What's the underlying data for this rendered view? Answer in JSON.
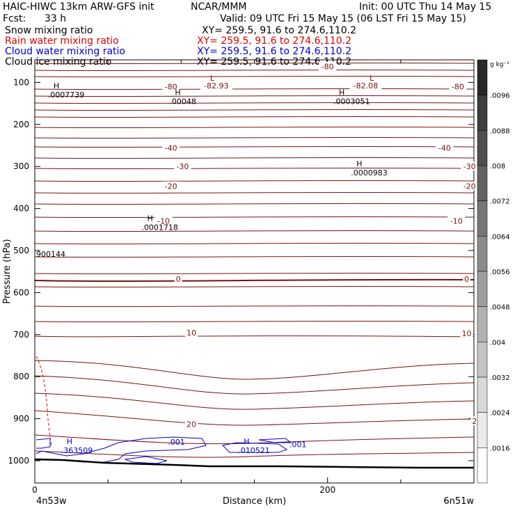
{
  "header": {
    "model": "HAIC-HIWC 13km ARW-GFS init",
    "org": "NCAR/MMM",
    "init": "Init: 00 UTC Thu 14 May 15",
    "fcst_label": "Fcst:",
    "fcst_value": "33 h",
    "valid": "Valid: 09 UTC Fri 15 May 15 (06 LST Fri 15 May 15)"
  },
  "fields": [
    {
      "name": "Snow mixing ratio",
      "xy": "XY= 259.5, 91.6 to 274.6,110.2",
      "color": "#000000"
    },
    {
      "name": "Rain water mixing ratio",
      "xy": "XY= 259.5, 91.6 to 274.6,110.2",
      "color": "#e00000"
    },
    {
      "name": "Cloud water mixing ratio",
      "xy": "XY= 259.5, 91.6 to 274.6,110.2",
      "color": "#0000cc"
    },
    {
      "name": "Cloud ice mixing ratio",
      "xy": "XY= 259.5, 91.6 to 274.6,110.2",
      "color": "#000000"
    }
  ],
  "colors": {
    "temperature_contour": "#7a1010",
    "cloud_water_contour": "#0000cc",
    "rain_contour": "#e00000",
    "terrain": "#000000"
  },
  "chart_data": {
    "type": "cross-section",
    "xlabel": "Distance (km)",
    "ylabel": "Pressure (hPa)",
    "xlim": [
      0,
      300
    ],
    "ylim": [
      1050,
      50
    ],
    "x_ticks": [
      0,
      200
    ],
    "y_ticks": [
      100,
      200,
      300,
      400,
      500,
      600,
      700,
      800,
      900,
      1000
    ],
    "x_endpoints": {
      "left": "4n53w",
      "right": "6n51w"
    },
    "colorbar": {
      "unit": "g kg⁻¹",
      "ticks": [
        ".0096",
        ".0088",
        ".008",
        ".0072",
        ".0064",
        ".0056",
        ".0048",
        ".004",
        ".0032",
        ".0024",
        ".0016"
      ]
    },
    "temperature_labels": [
      {
        "text": "-80",
        "x": 200,
        "p": 62
      },
      {
        "text": "-80",
        "x": 93,
        "p": 110
      },
      {
        "text": "-80",
        "x": 289,
        "p": 110
      },
      {
        "text": "-82.93",
        "x": 124,
        "p": 108
      },
      {
        "text": "-82.08",
        "x": 226,
        "p": 108
      },
      {
        "text": "-40",
        "x": 93,
        "p": 256
      },
      {
        "text": "-40",
        "x": 280,
        "p": 256
      },
      {
        "text": "-30",
        "x": 101,
        "p": 300
      },
      {
        "text": "-30",
        "x": 297,
        "p": 300
      },
      {
        "text": "-20",
        "x": 93,
        "p": 347
      },
      {
        "text": "-20",
        "x": 297,
        "p": 347
      },
      {
        "text": "-10",
        "x": 88,
        "p": 430
      },
      {
        "text": "-10",
        "x": 288,
        "p": 430
      },
      {
        "text": "0",
        "x": 98,
        "p": 568
      },
      {
        "text": "0",
        "x": 295,
        "p": 568
      },
      {
        "text": "10",
        "x": 107,
        "p": 695
      },
      {
        "text": "10",
        "x": 295,
        "p": 697
      },
      {
        "text": "20",
        "x": 107,
        "p": 913
      },
      {
        "text": "20",
        "x": 302,
        "p": 906
      }
    ],
    "extrema": [
      {
        "kind": "H",
        "value": ".0007739",
        "x": 8,
        "p": 114
      },
      {
        "kind": "L",
        "value": "",
        "x": 115,
        "p": 96
      },
      {
        "kind": "H",
        "value": ".00048",
        "x": 91,
        "p": 130
      },
      {
        "kind": "H",
        "value": ".0003051",
        "x": 203,
        "p": 130
      },
      {
        "kind": "L",
        "value": "",
        "x": 224,
        "p": 96
      },
      {
        "kind": "H",
        "value": ".0000983",
        "x": 215,
        "p": 300
      },
      {
        "kind": "H",
        "value": ".0001718",
        "x": 72,
        "p": 430
      },
      {
        "kind": "",
        "value": "900144",
        "x": 0,
        "p": 493
      },
      {
        "kind": "H",
        "value": ".363509",
        "x": 17,
        "p": 960
      },
      {
        "kind": "",
        "value": ".001",
        "x": 90,
        "p": 940
      },
      {
        "kind": "H",
        "value": ".010521",
        "x": 138,
        "p": 960
      },
      {
        "kind": "",
        "value": ".001",
        "x": 173,
        "p": 946
      }
    ]
  }
}
